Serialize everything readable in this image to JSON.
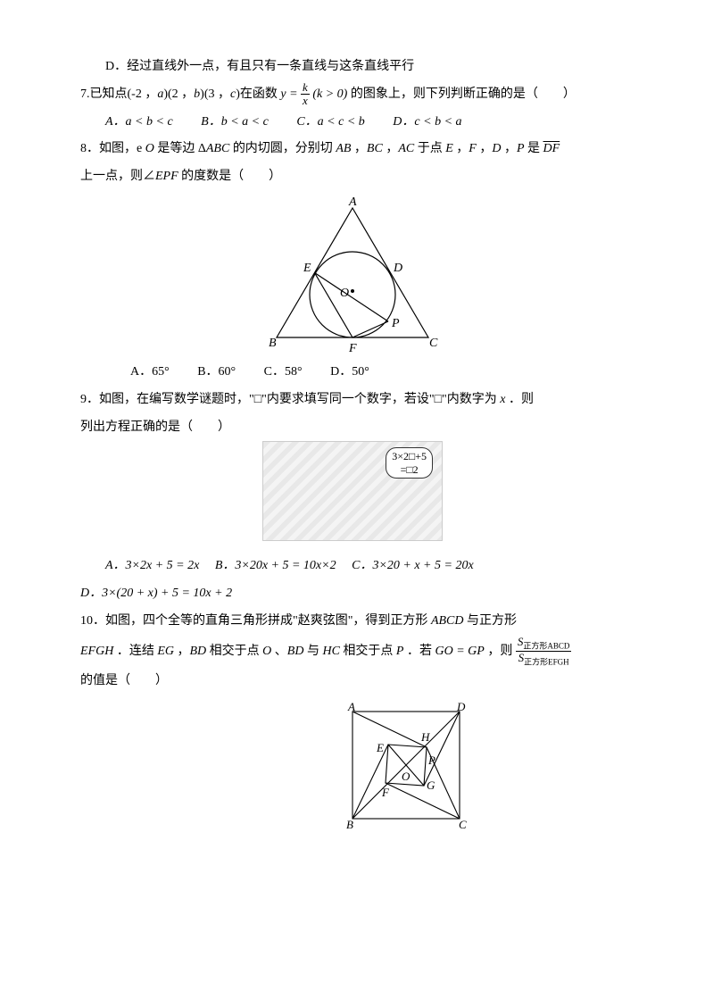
{
  "q6": {
    "optD": "D．经过直线外一点，有且只有一条直线与这条直线平行"
  },
  "q7": {
    "stem_a": "7.已知点(-2 ，",
    "stem_b": ")(2 ，",
    "stem_c": ")(3 ，",
    "stem_d": ")在函数",
    "stem_e": "的图象上，则下列判断正确的是（　　）",
    "a": "a",
    "b": "b",
    "c": "c",
    "func_y": "y =",
    "func_num": "k",
    "func_den": "x",
    "func_cond": "(k > 0)",
    "optA": "A．a < b < c",
    "optB": "B．b < a < c",
    "optC": "C．a < c < b",
    "optD": "D．c < b < a"
  },
  "q8": {
    "stem1_a": "8．如图，e ",
    "stem1_b": " 是等边 Δ",
    "stem1_c": " 的内切圆，分别切 ",
    "stem1_d": " ，",
    "stem1_e": " ，",
    "stem1_f": " 于点 ",
    "stem1_g": " ，",
    "stem1_h": " ，",
    "stem1_i": " ，",
    "stem1_j": " 是 ",
    "stem1_k": "DF",
    "stem2_a": "上一点，则∠",
    "stem2_b": " 的度数是（　　）",
    "O": "O",
    "ABC": "ABC",
    "AB": "AB",
    "BC": "BC",
    "AC": "AC",
    "E": "E",
    "F": "F",
    "D": "D",
    "P": "P",
    "EPF": "EPF",
    "labels": {
      "A": "A",
      "B": "B",
      "C": "C",
      "D": "D",
      "E": "E",
      "F": "F",
      "O": "O",
      "P": "P"
    },
    "optA": "A．65°",
    "optB": "B．60°",
    "optC": "C．58°",
    "optD": "D．50°",
    "fig": {
      "stroke": "#000",
      "fill": "none",
      "dot": "#000"
    }
  },
  "q9": {
    "stem1": "9．如图，在编写数学谜题时，\"□\"内要求填写同一个数字，若设\"□\"内数字为",
    "stem1_x": "x",
    "stem1_end": "．则",
    "stem2": "列出方程正确的是（　　）",
    "bubble": "3×2□+5\n=□2",
    "optA": "A．3×2x + 5 = 2x",
    "optB": "B．3×20x + 5 = 10x×2",
    "optC": "C．3×20 + x + 5 = 20x",
    "optD": "D．3×(20 + x) + 5 = 10x + 2"
  },
  "q10": {
    "stem1_a": "10．如图，四个全等的直角三角形拼成\"赵爽弦图\"，得到正方形 ",
    "stem1_b": " 与正方形",
    "ABCD": "ABCD",
    "stem2_a": " ．连结 ",
    "stem2_b": " ，",
    "stem2_c": " 相交于点 ",
    "stem2_d": " 、",
    "stem2_e": " 与 ",
    "stem2_f": " 相交于点 ",
    "stem2_g": " ．若 ",
    "stem2_h": " ，则 ",
    "EFGH": "EFGH",
    "EG": "EG",
    "BD": "BD",
    "O": "O",
    "HC": "HC",
    "P": "P",
    "cond": "GO = GP",
    "frac_num": "S",
    "frac_num_sub": "正方形ABCD",
    "frac_den": "S",
    "frac_den_sub": "正方形EFGH",
    "stem3": "的值是（　　）",
    "labels": {
      "A": "A",
      "B": "B",
      "C": "C",
      "D": "D",
      "E": "E",
      "F": "F",
      "G": "G",
      "H": "H",
      "O": "O",
      "P": "P"
    },
    "fig": {
      "stroke": "#000"
    }
  }
}
